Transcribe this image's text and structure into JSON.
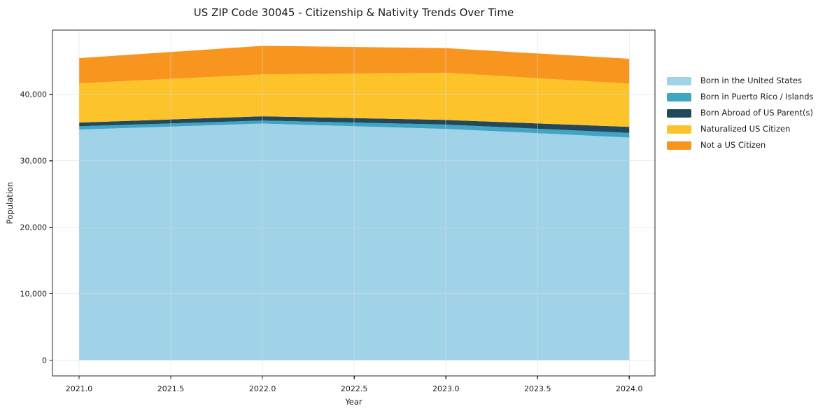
{
  "chart_data": {
    "type": "area",
    "stacked": true,
    "title": "US ZIP Code 30045 - Citizenship & Nativity Trends Over Time",
    "xlabel": "Year",
    "ylabel": "Population",
    "x": [
      2021,
      2022,
      2023,
      2024
    ],
    "series": [
      {
        "name": "Born in the United States",
        "color": "#a0d2e8",
        "values": [
          34700,
          35600,
          34800,
          33500
        ]
      },
      {
        "name": "Born in Puerto Rico / Islands",
        "color": "#3fa5c2",
        "values": [
          500,
          450,
          650,
          700
        ]
      },
      {
        "name": "Born Abroad of US Parent(s)",
        "color": "#23485c",
        "values": [
          550,
          650,
          700,
          900
        ]
      },
      {
        "name": "Naturalized US Citizen",
        "color": "#fcc32a",
        "values": [
          5900,
          6300,
          7100,
          6500
        ]
      },
      {
        "name": "Not a US Citizen",
        "color": "#f8951f",
        "values": [
          3800,
          4300,
          3700,
          3750
        ]
      }
    ],
    "stacked_totals": [
      45450,
      47300,
      46950,
      45350
    ],
    "xlim": [
      2020.855,
      2024.14
    ],
    "ylim": [
      -2365,
      49665
    ],
    "xticks": {
      "values": [
        2021.0,
        2021.5,
        2022.0,
        2022.5,
        2023.0,
        2023.5,
        2024.0
      ],
      "labels": [
        "2021.0",
        "2021.5",
        "2022.0",
        "2022.5",
        "2023.0",
        "2023.5",
        "2024.0"
      ]
    },
    "yticks": {
      "values": [
        0,
        10000,
        20000,
        30000,
        40000
      ],
      "labels": [
        "0",
        "10,000",
        "20,000",
        "30,000",
        "40,000"
      ]
    },
    "grid": true,
    "legend_position": "right-outside"
  },
  "style": {
    "background": "#ffffff",
    "grid_color": "#dddddd",
    "grid_opacity": 0.55,
    "spine_color": "#262626",
    "tick_color": "#262626",
    "text_color": "#1a1a1a"
  }
}
